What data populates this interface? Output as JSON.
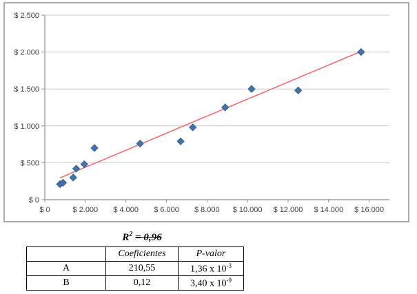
{
  "r2_label": {
    "symbol": "R",
    "exponent": "2",
    "value": "= 0,96"
  },
  "chart_data": {
    "type": "scatter",
    "title": "",
    "xlabel": "",
    "ylabel": "",
    "xlim": [
      0,
      17000
    ],
    "ylim": [
      0,
      2500
    ],
    "grid": true,
    "legend": "none",
    "x_ticks": [
      {
        "value": 0,
        "label": "$ 0"
      },
      {
        "value": 2000,
        "label": "$ 2.000"
      },
      {
        "value": 4000,
        "label": "$ 4.000"
      },
      {
        "value": 6000,
        "label": "$ 6.000"
      },
      {
        "value": 8000,
        "label": "$ 8.000"
      },
      {
        "value": 10000,
        "label": "$ 10.000"
      },
      {
        "value": 12000,
        "label": "$ 12.000"
      },
      {
        "value": 14000,
        "label": "$ 14.000"
      },
      {
        "value": 16000,
        "label": "$ 16.000"
      }
    ],
    "y_ticks": [
      {
        "value": 0,
        "label": "$ 0"
      },
      {
        "value": 500,
        "label": "$ 500"
      },
      {
        "value": 1000,
        "label": "$ 1.000"
      },
      {
        "value": 1500,
        "label": "$ 1.500"
      },
      {
        "value": 2000,
        "label": "$ 2.000"
      },
      {
        "value": 2500,
        "label": "$ 2.500"
      }
    ],
    "points": [
      {
        "x": 750,
        "y": 210
      },
      {
        "x": 900,
        "y": 230
      },
      {
        "x": 1400,
        "y": 300
      },
      {
        "x": 1550,
        "y": 420
      },
      {
        "x": 1950,
        "y": 480
      },
      {
        "x": 2450,
        "y": 700
      },
      {
        "x": 4700,
        "y": 760
      },
      {
        "x": 6700,
        "y": 790
      },
      {
        "x": 7300,
        "y": 980
      },
      {
        "x": 8900,
        "y": 1250
      },
      {
        "x": 10200,
        "y": 1500
      },
      {
        "x": 12500,
        "y": 1480
      },
      {
        "x": 15600,
        "y": 2000
      }
    ],
    "trendline": {
      "x1": 750,
      "y1": 295,
      "x2": 15700,
      "y2": 2020
    },
    "marker": {
      "shape": "diamond",
      "size": 10
    },
    "colors": {
      "marker_fill": "#4572A7",
      "marker_border": "#38618C",
      "trendline": "#F26D6D",
      "gridline": "#C9C9C9",
      "axis": "#8F8F8F",
      "tick_text": "#3F3F3F",
      "frame_border": "#ABABAB"
    }
  },
  "results_table": {
    "headers": [
      "",
      "Coeficientes",
      "P-valor"
    ],
    "rows": [
      {
        "label": "A",
        "coeficiente": "210,55",
        "p_valor_base": "1,36 x 10",
        "p_valor_exp": "-3"
      },
      {
        "label": "B",
        "coeficiente": "0,12",
        "p_valor_base": "3,40 x 10",
        "p_valor_exp": "-9"
      }
    ]
  }
}
